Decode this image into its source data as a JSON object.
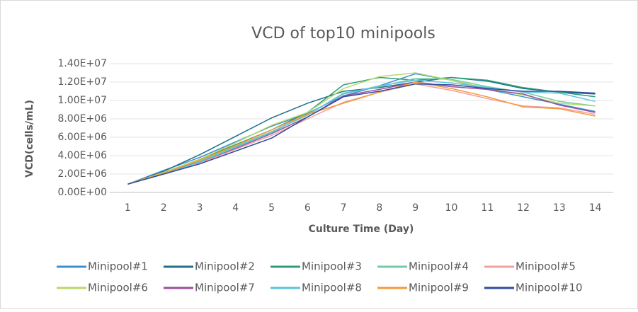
{
  "chart_data": {
    "type": "line",
    "title": "VCD of top10 minipools",
    "y_label": "VCD(cells/mL)",
    "x_label": "Culture Time (Day)",
    "categories": [
      "1",
      "2",
      "3",
      "4",
      "5",
      "6",
      "7",
      "8",
      "9",
      "10",
      "11",
      "12",
      "13",
      "14"
    ],
    "ylim": [
      0,
      14000000
    ],
    "yticks": [
      {
        "value": 0,
        "label": "0.00E+00"
      },
      {
        "value": 2000000,
        "label": "2.00E+06"
      },
      {
        "value": 4000000,
        "label": "4.00E+06"
      },
      {
        "value": 6000000,
        "label": "6.00E+06"
      },
      {
        "value": 8000000,
        "label": "8.00E+06"
      },
      {
        "value": 10000000,
        "label": "1.00E+07"
      },
      {
        "value": 12000000,
        "label": "1.20E+07"
      },
      {
        "value": 14000000,
        "label": "1.40E+07"
      }
    ],
    "grid": true,
    "legend": "bottom",
    "series": [
      {
        "name": "Minipool#1",
        "color": "#3a8fd0",
        "values": [
          900000,
          2400000,
          3800000,
          5500000,
          7200000,
          8600000,
          10500000,
          11600000,
          12900000,
          12200000,
          11200000,
          10400000,
          9600000,
          8800000
        ]
      },
      {
        "name": "Minipool#2",
        "color": "#1f6e8c",
        "values": [
          900000,
          2300000,
          4100000,
          6100000,
          8100000,
          9700000,
          11000000,
          11400000,
          12000000,
          12500000,
          12100000,
          11300000,
          10900000,
          10700000
        ]
      },
      {
        "name": "Minipool#3",
        "color": "#2e9c7a",
        "values": [
          900000,
          2200000,
          3600000,
          5200000,
          6800000,
          8700000,
          11700000,
          12500000,
          12200000,
          12500000,
          12200000,
          11400000,
          10900000,
          10400000
        ]
      },
      {
        "name": "Minipool#4",
        "color": "#72cba3",
        "values": [
          900000,
          2100000,
          3400000,
          5000000,
          6600000,
          8400000,
          10800000,
          11500000,
          12400000,
          12300000,
          11500000,
          10900000,
          9900000,
          9400000
        ]
      },
      {
        "name": "Minipool#5",
        "color": "#f2a09b",
        "values": [
          900000,
          2000000,
          3200000,
          4700000,
          6200000,
          8000000,
          9800000,
          10900000,
          11800000,
          11100000,
          10200000,
          9400000,
          9200000,
          8500000
        ]
      },
      {
        "name": "Minipool#6",
        "color": "#b8d96a",
        "values": [
          900000,
          2200000,
          3600000,
          5400000,
          7300000,
          8700000,
          11300000,
          12600000,
          13000000,
          12200000,
          11300000,
          10600000,
          9700000,
          9400000
        ]
      },
      {
        "name": "Minipool#7",
        "color": "#9c4f9e",
        "values": [
          900000,
          2100000,
          3300000,
          4800000,
          6400000,
          8200000,
          10500000,
          11200000,
          12000000,
          11500000,
          11200000,
          10700000,
          9500000,
          8700000
        ]
      },
      {
        "name": "Minipool#8",
        "color": "#5cc2dd",
        "values": [
          900000,
          2000000,
          3300000,
          4900000,
          6500000,
          8500000,
          10700000,
          11600000,
          12200000,
          11900000,
          11400000,
          10900000,
          10800000,
          9900000
        ]
      },
      {
        "name": "Minipool#9",
        "color": "#f39a3a",
        "values": [
          900000,
          2100000,
          3500000,
          5100000,
          6800000,
          8500000,
          9700000,
          10900000,
          12000000,
          11300000,
          10400000,
          9300000,
          9100000,
          8300000
        ]
      },
      {
        "name": "Minipool#10",
        "color": "#2f4e9e",
        "values": [
          900000,
          2000000,
          3100000,
          4500000,
          5900000,
          8200000,
          10400000,
          11000000,
          11800000,
          11700000,
          11300000,
          11000000,
          11000000,
          10800000
        ]
      }
    ]
  }
}
